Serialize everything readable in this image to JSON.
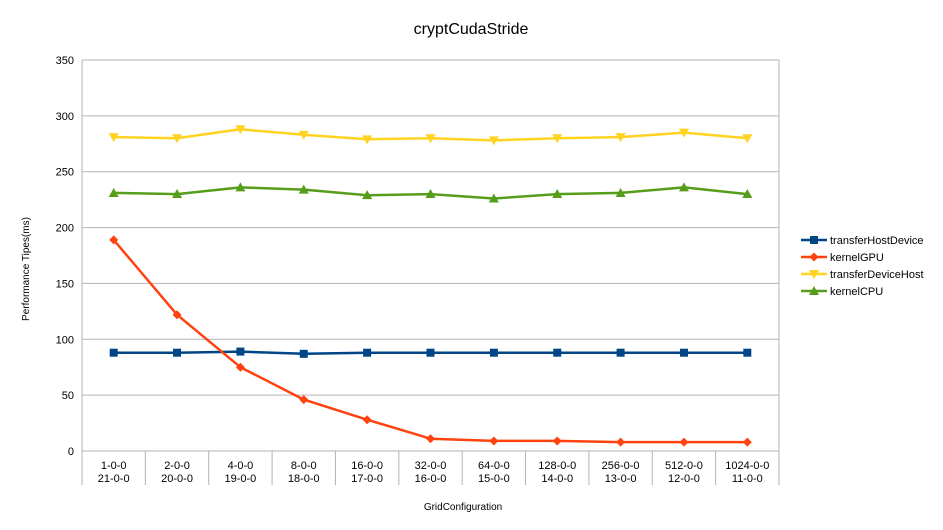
{
  "chart_data": {
    "type": "line",
    "title": "cryptCudaStride",
    "xlabel": "GridConfiguration",
    "ylabel": "Performance Tipes(ms)",
    "ylim": [
      0,
      350
    ],
    "yticks": [
      0,
      50,
      100,
      150,
      200,
      250,
      300,
      350
    ],
    "grid": "horizontal",
    "legend_position": "right",
    "categories": [
      [
        "1-0-0",
        "21-0-0"
      ],
      [
        "2-0-0",
        "20-0-0"
      ],
      [
        "4-0-0",
        "19-0-0"
      ],
      [
        "8-0-0",
        "18-0-0"
      ],
      [
        "16-0-0",
        "17-0-0"
      ],
      [
        "32-0-0",
        "16-0-0"
      ],
      [
        "64-0-0",
        "15-0-0"
      ],
      [
        "128-0-0",
        "14-0-0"
      ],
      [
        "256-0-0",
        "13-0-0"
      ],
      [
        "512-0-0",
        "12-0-0"
      ],
      [
        "1024-0-0",
        "11-0-0"
      ]
    ],
    "series": [
      {
        "name": "transferHostDevice",
        "color": "#004586",
        "marker": "square",
        "values": [
          88,
          88,
          89,
          87,
          88,
          88,
          88,
          88,
          88,
          88,
          88
        ]
      },
      {
        "name": "kernelGPU",
        "color": "#ff420e",
        "marker": "diamond",
        "values": [
          189,
          122,
          75,
          46,
          28,
          11,
          9,
          9,
          8,
          8,
          8
        ]
      },
      {
        "name": "transferDeviceHost",
        "color": "#ffd320",
        "marker": "triangle-down",
        "values": [
          281,
          280,
          288,
          283,
          279,
          280,
          278,
          280,
          281,
          285,
          280
        ]
      },
      {
        "name": "kernelCPU",
        "color": "#579d1c",
        "marker": "triangle-up",
        "values": [
          231,
          230,
          236,
          234,
          229,
          230,
          226,
          230,
          231,
          236,
          230
        ]
      }
    ]
  }
}
